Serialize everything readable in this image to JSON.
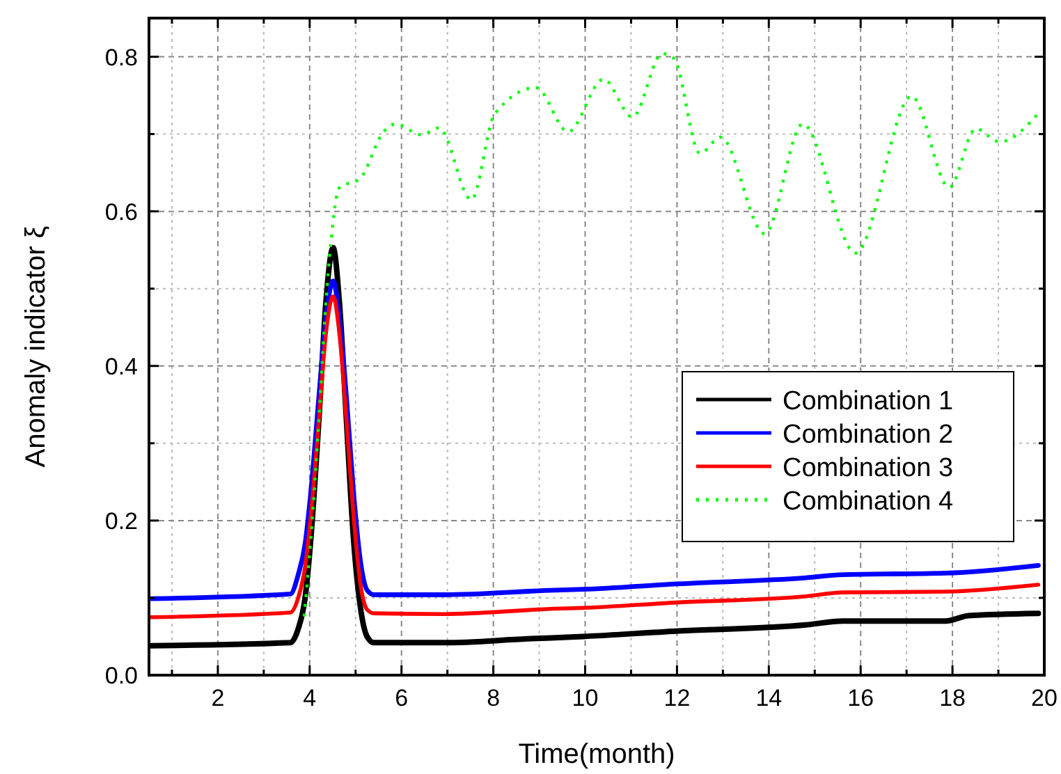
{
  "chart_data": {
    "type": "line",
    "xlabel": "Time(month)",
    "ylabel": "Anomaly indicator ξ",
    "xlim": [
      0.5,
      20
    ],
    "ylim": [
      0,
      0.85
    ],
    "xticks": [
      {
        "value": 1,
        "label": null
      },
      2,
      {
        "value": 3,
        "label": null
      },
      4,
      {
        "value": 5,
        "label": null
      },
      6,
      {
        "value": 7,
        "label": null
      },
      8,
      {
        "value": 9,
        "label": null
      },
      10,
      {
        "value": 11,
        "label": null
      },
      12,
      {
        "value": 13,
        "label": null
      },
      14,
      {
        "value": 15,
        "label": null
      },
      16,
      {
        "value": 17,
        "label": null
      },
      18,
      {
        "value": 19,
        "label": null
      },
      20
    ],
    "yticks": [
      {
        "value": 0,
        "label": "0.0"
      },
      {
        "value": 0.1,
        "label": null
      },
      0.2,
      {
        "value": 0.3,
        "label": null
      },
      0.4,
      {
        "value": 0.5,
        "label": null
      },
      0.6,
      {
        "value": 0.7,
        "label": null
      },
      0.8
    ],
    "grid": true,
    "legend": "right",
    "series": [
      {
        "name": "Combination 1",
        "color": "#000000",
        "line_style": "solid",
        "x": [
          0.54,
          3.58,
          3.75,
          3.9,
          4.03,
          4.2,
          4.35,
          4.51,
          4.65,
          4.8,
          4.95,
          5.1,
          5.25,
          5.4,
          6.92,
          8.74,
          9.95,
          11.98,
          14.81,
          15.62,
          17.85,
          18.35,
          19.87
        ],
        "values": [
          0.038,
          0.042,
          0.06,
          0.1,
          0.18,
          0.33,
          0.48,
          0.553,
          0.48,
          0.33,
          0.18,
          0.09,
          0.05,
          0.042,
          0.042,
          0.047,
          0.05,
          0.057,
          0.065,
          0.07,
          0.07,
          0.077,
          0.08
        ]
      },
      {
        "name": "Combination 2",
        "color": "#0000ff",
        "line_style": "solid",
        "x": [
          0.54,
          3.58,
          3.75,
          3.9,
          4.03,
          4.2,
          4.35,
          4.51,
          4.65,
          4.8,
          4.95,
          5.1,
          5.25,
          5.4,
          6.92,
          9.35,
          9.95,
          11.98,
          14.81,
          15.62,
          17.85,
          19.87
        ],
        "values": [
          0.099,
          0.105,
          0.13,
          0.17,
          0.24,
          0.36,
          0.46,
          0.51,
          0.46,
          0.36,
          0.24,
          0.15,
          0.11,
          0.104,
          0.104,
          0.11,
          0.111,
          0.118,
          0.126,
          0.13,
          0.132,
          0.142
        ]
      },
      {
        "name": "Combination 3",
        "color": "#ff0000",
        "line_style": "solid",
        "x": [
          0.54,
          3.58,
          3.75,
          3.9,
          4.03,
          4.2,
          4.35,
          4.51,
          4.65,
          4.8,
          4.95,
          5.1,
          5.25,
          5.4,
          6.92,
          9.35,
          9.95,
          11.98,
          14.81,
          15.62,
          17.85,
          19.87
        ],
        "values": [
          0.075,
          0.081,
          0.1,
          0.14,
          0.21,
          0.33,
          0.44,
          0.49,
          0.44,
          0.33,
          0.21,
          0.12,
          0.085,
          0.08,
          0.079,
          0.086,
          0.087,
          0.094,
          0.102,
          0.107,
          0.108,
          0.117
        ]
      },
      {
        "name": "Combination 4",
        "color": "#00ff00",
        "line_style": "dotted",
        "x": [
          3.88,
          4.03,
          4.2,
          4.35,
          4.46,
          4.65,
          5.09,
          5.61,
          5.87,
          6.44,
          6.82,
          7.52,
          8.03,
          8.93,
          9.63,
          10.4,
          11.03,
          11.68,
          11.93,
          12.5,
          12.95,
          13.91,
          14.74,
          15.89,
          17.11,
          17.93,
          18.51,
          19.02,
          19.92
        ],
        "values": [
          0.076,
          0.18,
          0.33,
          0.48,
          0.559,
          0.631,
          0.642,
          0.703,
          0.713,
          0.699,
          0.708,
          0.615,
          0.726,
          0.76,
          0.703,
          0.771,
          0.722,
          0.804,
          0.798,
          0.675,
          0.696,
          0.571,
          0.713,
          0.546,
          0.749,
          0.631,
          0.707,
          0.69,
          0.73
        ]
      }
    ]
  }
}
